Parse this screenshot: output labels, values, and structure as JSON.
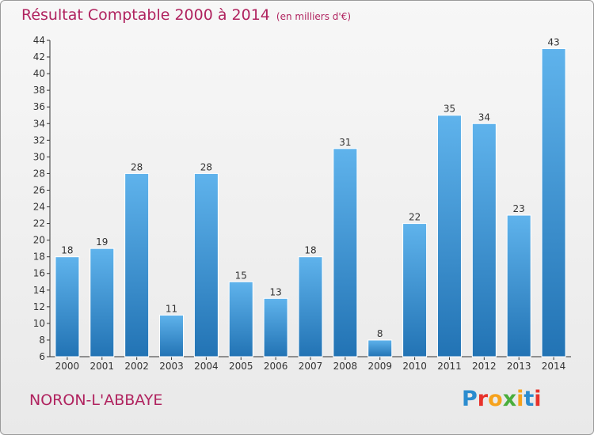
{
  "title": "Résultat Comptable 2000 à 2014",
  "unit": "(en milliers d'€)",
  "town": "NORON-L'ABBAYE",
  "logo": {
    "text": "Proxiti",
    "colors": [
      "#2b8ccf",
      "#e8322b",
      "#f6a21c",
      "#4aae3c",
      "#f6a21c",
      "#2b8ccf",
      "#e8322b"
    ]
  },
  "colors": {
    "bar_top": "#5fb3ec",
    "bar_bottom": "#2273b4",
    "title": "#b0235f"
  },
  "chart_data": {
    "type": "bar",
    "categories": [
      "2000",
      "2001",
      "2002",
      "2003",
      "2004",
      "2005",
      "2006",
      "2007",
      "2008",
      "2009",
      "2010",
      "2011",
      "2012",
      "2013",
      "2014"
    ],
    "values": [
      18,
      19,
      28,
      11,
      28,
      15,
      13,
      18,
      31,
      8,
      22,
      35,
      34,
      23,
      43
    ],
    "ylim": [
      6,
      44
    ],
    "yticks": [
      6,
      8,
      10,
      12,
      14,
      16,
      18,
      20,
      22,
      24,
      26,
      28,
      30,
      32,
      34,
      36,
      38,
      40,
      42,
      44
    ],
    "grid": false,
    "title": "Résultat Comptable 2000 à 2014",
    "xlabel": "",
    "ylabel": ""
  }
}
